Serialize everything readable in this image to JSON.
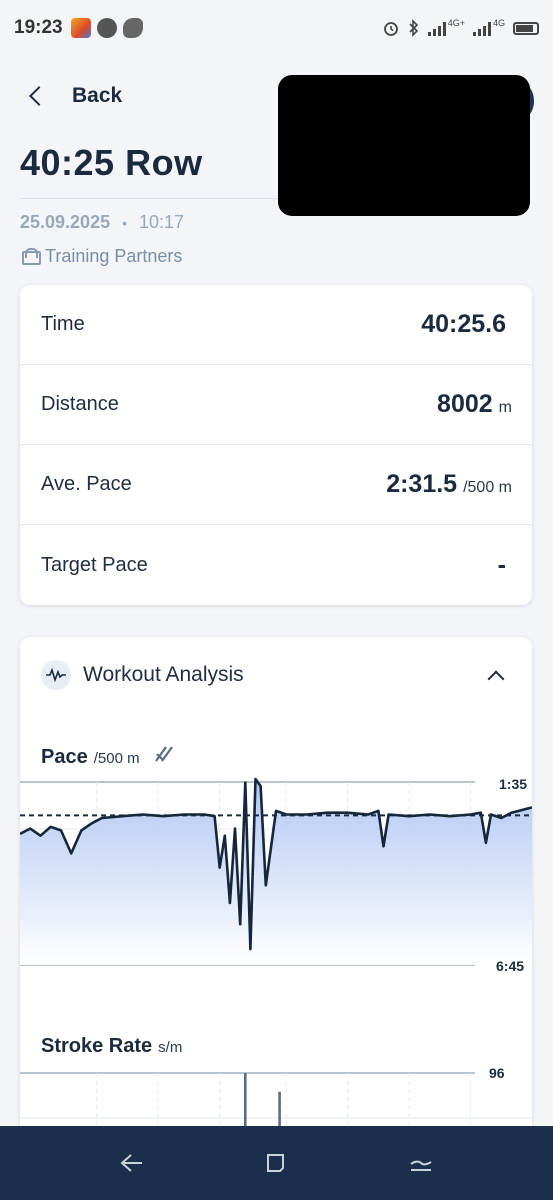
{
  "status_bar": {
    "time": "19:23",
    "net1": "4G+",
    "net2": "4G"
  },
  "header": {
    "back_label": "Back"
  },
  "workout": {
    "title": "40:25 Row",
    "date": "25.09.2025",
    "separator": "•",
    "time": "10:17",
    "visibility": "Training Partners"
  },
  "stats": [
    {
      "label": "Time",
      "value": "40:25.6",
      "unit": ""
    },
    {
      "label": "Distance",
      "value": "8002",
      "unit": "m"
    },
    {
      "label": "Ave. Pace",
      "value": "2:31.5",
      "unit": "/500 m"
    },
    {
      "label": "Target Pace",
      "value": "-",
      "unit": ""
    }
  ],
  "analysis": {
    "title": "Workout Analysis",
    "pace": {
      "title": "Pace",
      "unit": "/500 m",
      "top_tick": "1:35",
      "bottom_tick": "6:45"
    },
    "stroke": {
      "title": "Stroke Rate",
      "unit": "s/m",
      "top_tick": "96"
    }
  },
  "colors": {
    "accent": "#1b2a3c",
    "nav_bar": "#1b2e4b",
    "fill": "#b9cdf4"
  },
  "chart_data": [
    {
      "type": "area",
      "title": "Pace",
      "ylabel": "/500 m",
      "ylim": [
        "1:35",
        "6:45"
      ],
      "y_ticks": [
        "1:35",
        "6:45"
      ],
      "reference_line": "2:31.5",
      "x": [
        0,
        0.02,
        0.04,
        0.06,
        0.08,
        0.1,
        0.12,
        0.14,
        0.16,
        0.2,
        0.24,
        0.28,
        0.32,
        0.36,
        0.38,
        0.39,
        0.4,
        0.41,
        0.42,
        0.43,
        0.44,
        0.45,
        0.46,
        0.47,
        0.48,
        0.5,
        0.52,
        0.56,
        0.6,
        0.64,
        0.68,
        0.7,
        0.71,
        0.72,
        0.76,
        0.8,
        0.84,
        0.88,
        0.9,
        0.91,
        0.92,
        0.94,
        0.96,
        1.0
      ],
      "values": [
        3.05,
        2.9,
        3.1,
        2.85,
        2.95,
        3.6,
        2.95,
        2.75,
        2.6,
        2.55,
        2.5,
        2.55,
        2.5,
        2.5,
        2.55,
        4.0,
        3.1,
        5.0,
        2.9,
        5.6,
        1.6,
        6.3,
        1.5,
        1.7,
        4.5,
        2.4,
        2.5,
        2.5,
        2.45,
        2.45,
        2.5,
        2.4,
        3.4,
        2.5,
        2.55,
        2.5,
        2.55,
        2.5,
        2.45,
        3.3,
        2.5,
        2.6,
        2.45,
        2.3
      ]
    },
    {
      "type": "line",
      "title": "Stroke Rate",
      "ylabel": "s/m",
      "y_ticks": [
        "96"
      ],
      "x": [
        0,
        0.3,
        0.4,
        0.43,
        0.44,
        0.5,
        0.507,
        0.52,
        0.7,
        1.0
      ],
      "values": [
        20,
        20,
        20,
        20,
        96,
        20,
        90,
        20,
        20,
        20
      ]
    }
  ]
}
